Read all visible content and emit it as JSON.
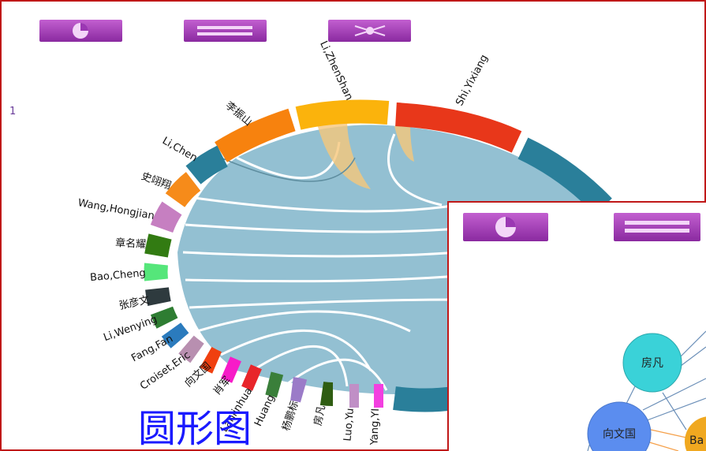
{
  "panel_label": "1",
  "chord": {
    "labels": [
      "Shi,Yixiang",
      "Li,ZhenShan",
      "李振山",
      "Li,Chen",
      "史翊翔",
      "Wang,Hongjian",
      "章名耀",
      "Bao,Cheng",
      "张彦文",
      "Li,Wenying",
      "Fang,Fan",
      "Croiset,Eric",
      "向文国",
      "肖军",
      "Lanlinhua",
      "Huang",
      "杨鹏标",
      "房凡",
      "Luo,Yu",
      "Yang,YI"
    ]
  },
  "caption": "圆形图",
  "overlay": {
    "nodes": [
      "房凡",
      "向文国",
      "Ba"
    ]
  }
}
